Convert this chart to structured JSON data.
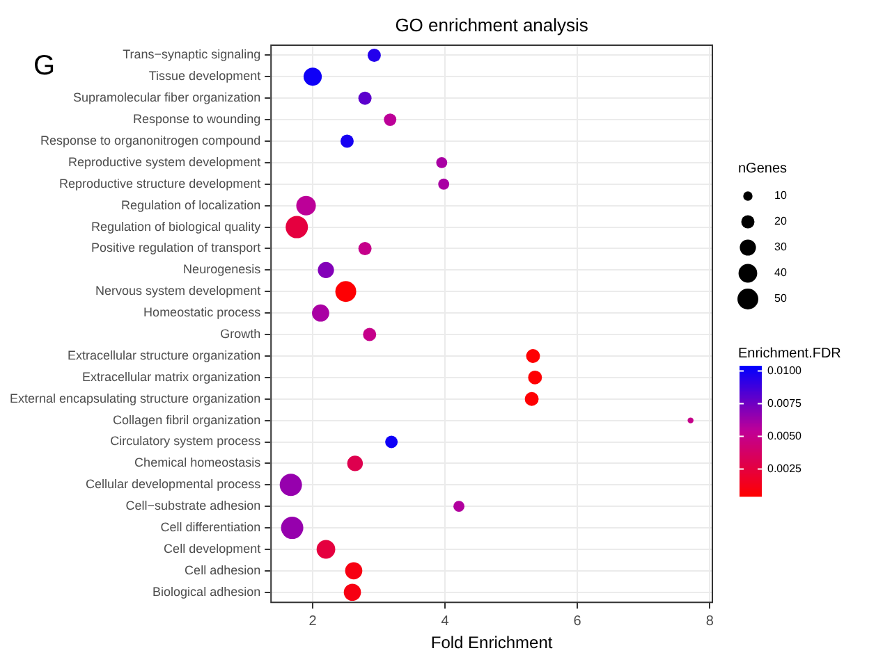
{
  "chart_data": {
    "type": "bubble",
    "title": "GO enrichment analysis",
    "xlabel": "Fold Enrichment",
    "orientation": "horizontal",
    "legend_title": "nGenes",
    "clabel": "Enrichment.FDR",
    "annotations": [
      "G"
    ],
    "categories": [
      "Trans−synaptic signaling",
      "Tissue development",
      "Supramolecular fiber organization",
      "Response to wounding",
      "Response to organonitrogen compound",
      "Reproductive system development",
      "Reproductive structure development",
      "Regulation of localization",
      "Regulation of biological quality",
      "Positive regulation of transport",
      "Neurogenesis",
      "Nervous system development",
      "Homeostatic process",
      "Growth",
      "Extracellular structure organization",
      "Extracellular matrix organization",
      "External encapsulating structure organization",
      "Collagen fibril organization",
      "Circulatory system process",
      "Chemical homeostasis",
      "Cellular developmental process",
      "Cell−substrate adhesion",
      "Cell differentiation",
      "Cell development",
      "Cell adhesion",
      "Biological adhesion"
    ],
    "values": [
      2.93,
      2.0,
      2.79,
      3.17,
      2.52,
      3.95,
      3.98,
      1.9,
      1.76,
      2.79,
      2.2,
      2.5,
      2.12,
      2.86,
      5.33,
      5.36,
      5.31,
      7.71,
      3.19,
      2.64,
      1.67,
      4.21,
      1.69,
      2.2,
      2.62,
      2.6
    ],
    "sizes": [
      20,
      38,
      20,
      18,
      20,
      14,
      14,
      44,
      57,
      20,
      30,
      50,
      34,
      20,
      22,
      22,
      22,
      4,
      18,
      28,
      57,
      14,
      57,
      40,
      34,
      34
    ],
    "cvalues": [
      0.0095,
      0.01,
      0.008,
      0.0055,
      0.0098,
      0.006,
      0.006,
      0.0055,
      0.0025,
      0.005,
      0.007,
      0.0005,
      0.006,
      0.005,
      0.0005,
      0.0005,
      0.0005,
      0.005,
      0.01,
      0.003,
      0.0065,
      0.0058,
      0.0065,
      0.0025,
      0.001,
      0.001
    ],
    "size_legend": [
      10,
      20,
      30,
      40,
      50
    ],
    "clim": [
      0.0004,
      0.0104
    ],
    "cticks": [
      {
        "value": 0.0025,
        "label": "0.0025"
      },
      {
        "value": 0.005,
        "label": "0.0050"
      },
      {
        "value": 0.0075,
        "label": "0.0075"
      },
      {
        "value": 0.01,
        "label": "0.0100"
      }
    ],
    "xlim": [
      1.36,
      8.05
    ],
    "xticks": [
      2,
      4,
      6,
      8
    ],
    "grid": true
  }
}
